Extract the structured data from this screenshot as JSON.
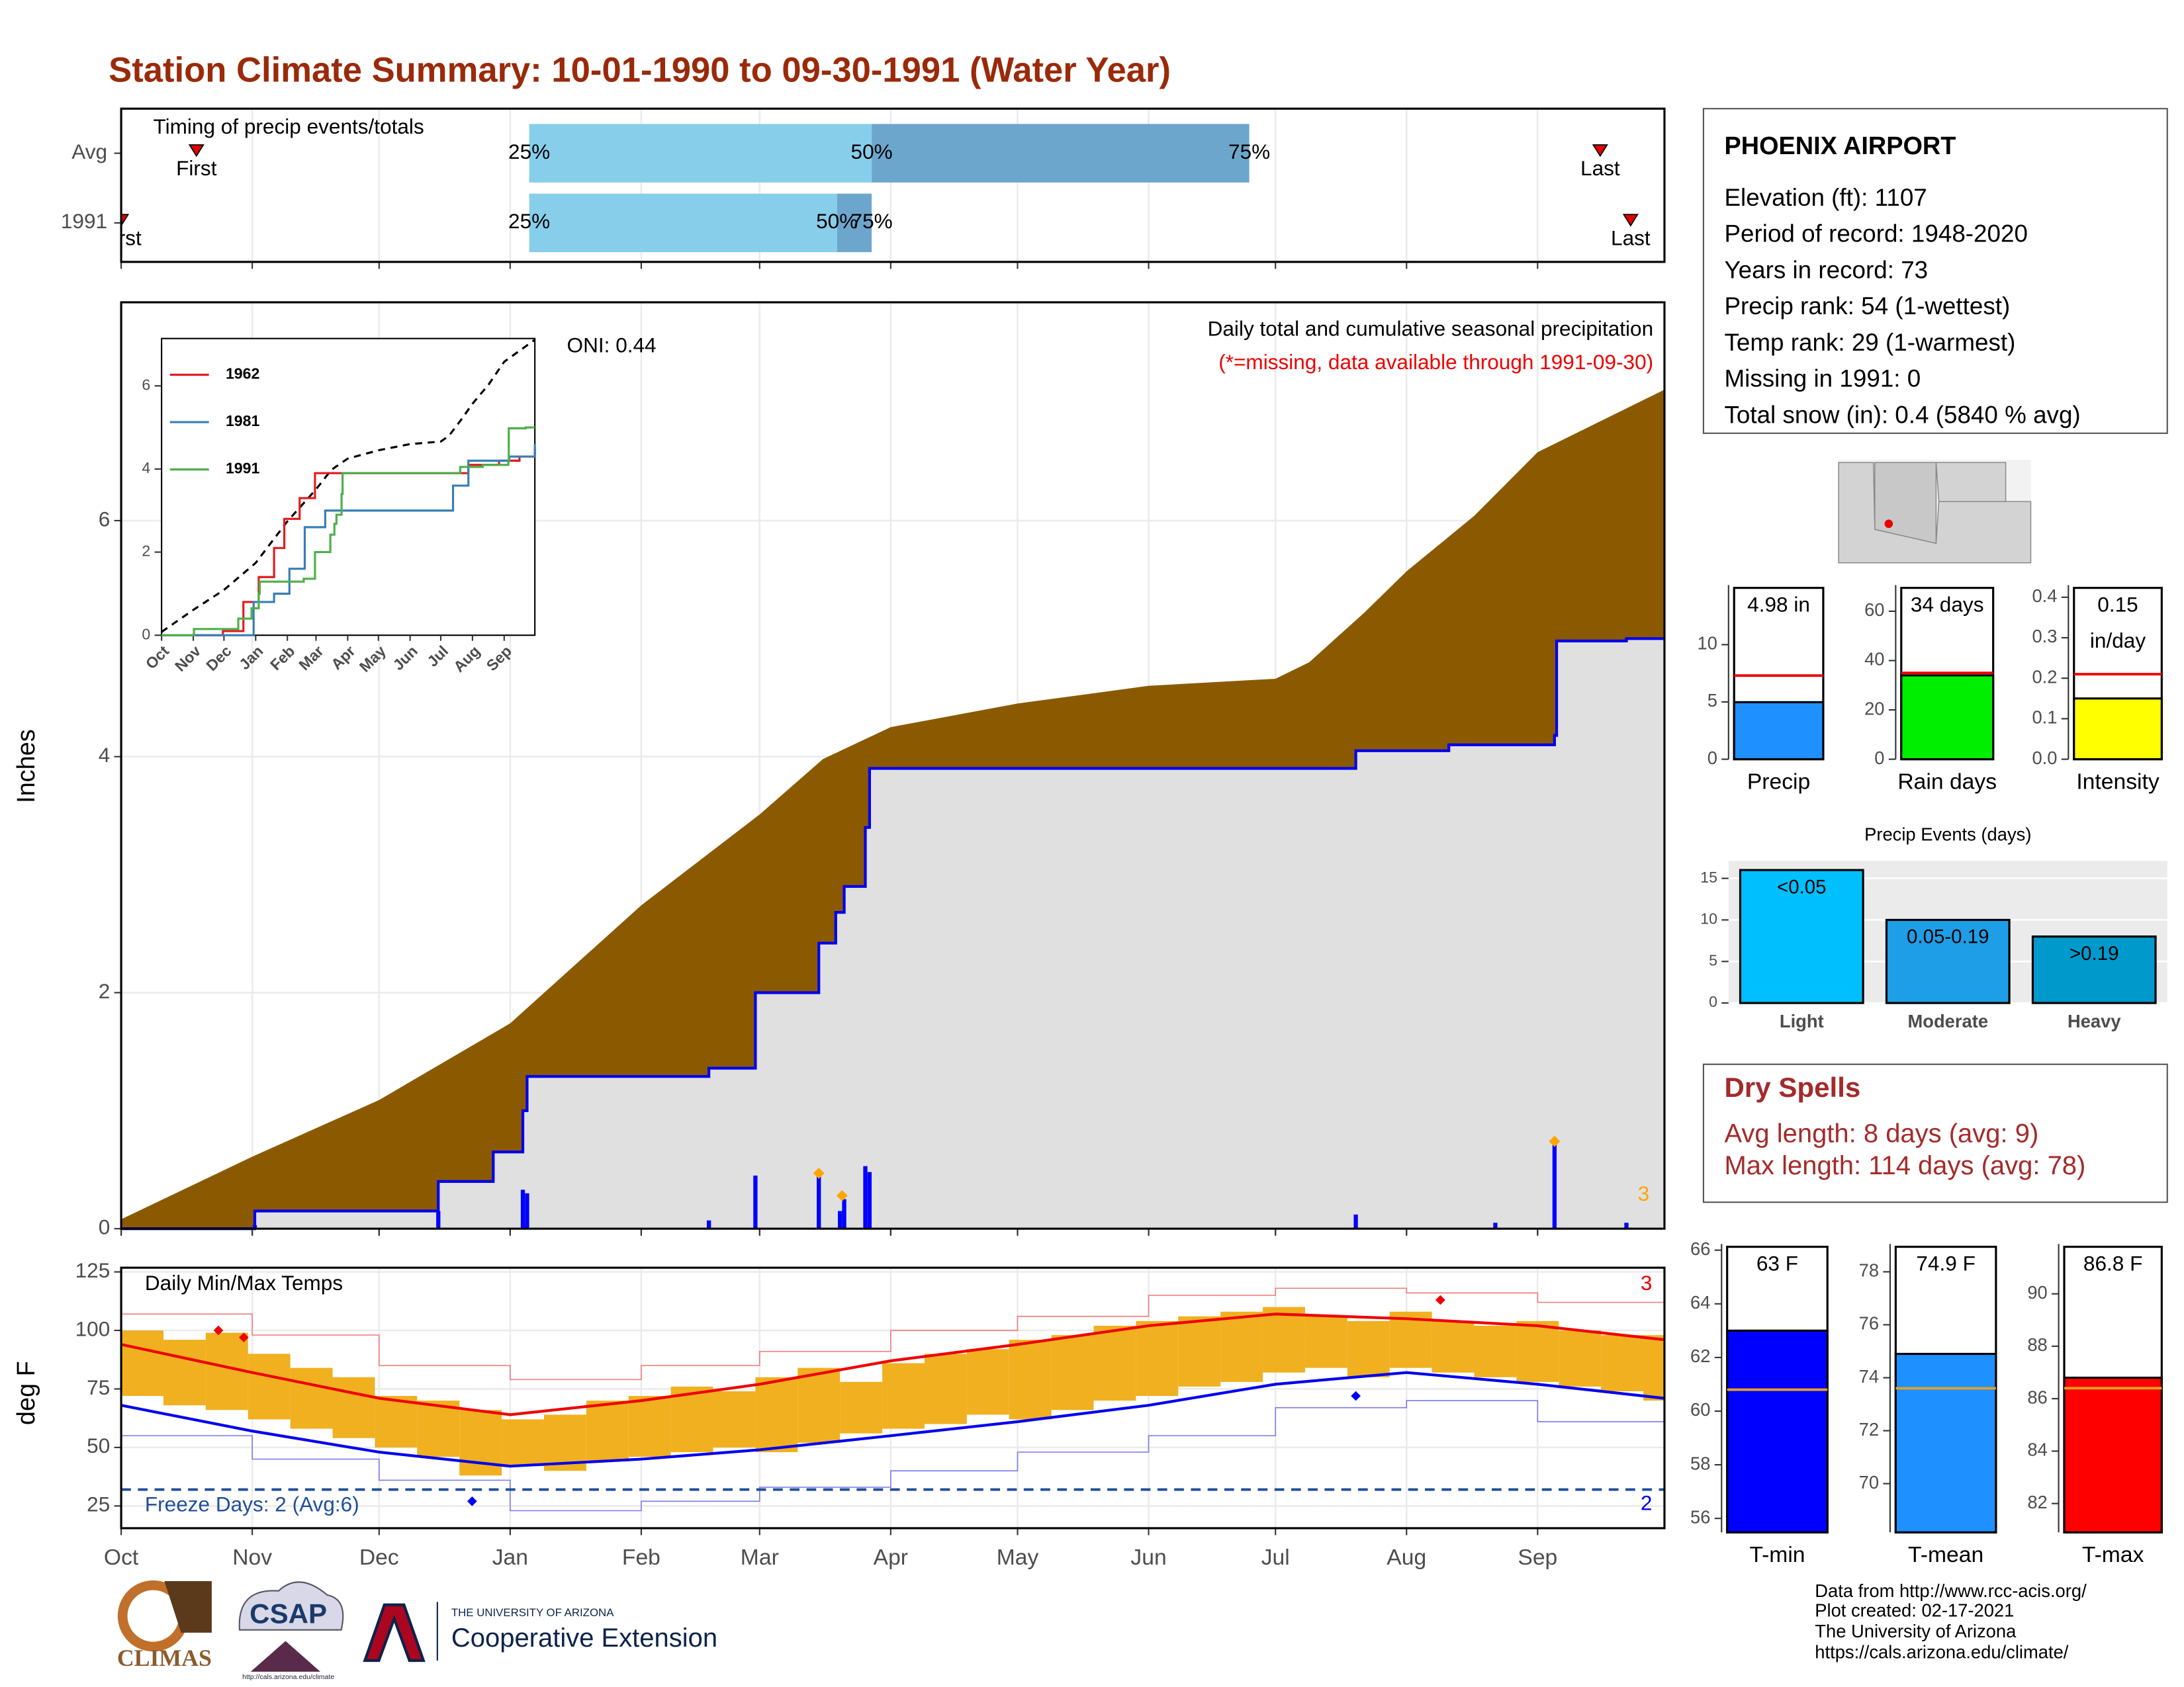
{
  "title": "Station Climate Summary: 10-01-1990 to 09-30-1991 (Water Year)",
  "station": {
    "name": "PHOENIX AIRPORT",
    "lines": [
      "Elevation (ft): 1107",
      "Period of record: 1948-2020",
      "Years in record: 73",
      "Precip rank: 54 (1-wettest)",
      "Temp rank: 29 (1-warmest)",
      "Missing in 1991: 0",
      "Total snow (in): 0.4 (5840 % avg)"
    ]
  },
  "dry_spells": {
    "title": "Dry Spells",
    "lines": [
      "Avg length: 8 days (avg: 9)",
      "Max length: 114 days (avg: 78)"
    ]
  },
  "footer": {
    "lines": [
      "Data from http://www.rcc-acis.org/",
      "Plot created: 02-17-2021",
      "The University of Arizona",
      "https://cals.arizona.edu/climate/"
    ]
  },
  "logos": {
    "climas": "CLIMAS",
    "csap": "CSAP",
    "csap_url": "http://cals.arizona.edu/climate",
    "university": "THE UNIVERSITY OF ARIZONA",
    "extension": "Cooperative Extension"
  },
  "chart_data": [
    {
      "type": "timing",
      "title": "Timing of precip events/totals",
      "xlim": [
        0,
        365
      ],
      "categories": [
        "Avg",
        "1991"
      ],
      "p25": [
        96.5,
        96.5
      ],
      "p50": [
        177.5,
        169.3
      ],
      "p75": [
        266.8,
        177.5
      ],
      "first": [
        17.8,
        0
      ],
      "last": [
        349.8,
        357
      ],
      "labels": {
        "p25": "25%",
        "p50": "50%",
        "p75": "75%",
        "first": "First",
        "last": "Last"
      },
      "colors": [
        "#87ceeb",
        "#6ca6cd"
      ],
      "marker_color": "#e00000"
    },
    {
      "type": "cumulative",
      "y_label": "Inches",
      "xlim": [
        0,
        365
      ],
      "ylim": [
        0,
        7.85
      ],
      "yticks": [
        0,
        2,
        4,
        6
      ],
      "oni": "ONI: 0.44",
      "subtitle": "Daily total and cumulative seasonal precipitation",
      "note": "(*=missing, data available through 1991-09-30)",
      "series": [
        {
          "color": "#8b5a00",
          "x": [
            0,
            31,
            61,
            92,
            123,
            151,
            166,
            182,
            212,
            243,
            273,
            281,
            294,
            304,
            320,
            335,
            365
          ],
          "values": [
            0.08,
            0.61,
            1.09,
            1.74,
            2.74,
            3.51,
            3.98,
            4.25,
            4.45,
            4.6,
            4.66,
            4.8,
            5.22,
            5.57,
            6.04,
            6.58,
            7.11
          ]
        },
        {
          "color": "#0000ee",
          "fill": "#e0e0e0",
          "x": [
            0,
            31.6,
            75,
            88,
            95,
            96,
            139,
            150,
            165,
            169,
            171,
            176,
            177,
            292,
            314,
            339,
            339.5,
            356,
            365
          ],
          "values": [
            0,
            0.15,
            0.4,
            0.65,
            1.0,
            1.29,
            1.36,
            2.0,
            2.42,
            2.68,
            2.9,
            3.4,
            3.9,
            4.05,
            4.1,
            4.18,
            4.98,
            5.0,
            5.0
          ]
        }
      ],
      "daily": {
        "color": "#0000ff",
        "x": [
          31.6,
          75,
          95,
          96,
          139,
          150,
          165,
          170,
          171,
          176,
          177,
          292,
          325,
          339,
          356
        ],
        "values": [
          0.03,
          0.15,
          0.33,
          0.3,
          0.07,
          0.45,
          0.45,
          0.15,
          0.25,
          0.53,
          0.48,
          0.12,
          0.05,
          0.72,
          0.05
        ]
      },
      "records": {
        "color": "#ffa500",
        "x": [
          165,
          170.5,
          339
        ],
        "values": [
          0.47,
          0.28,
          0.74
        ]
      },
      "record_count": 3
    },
    {
      "type": "line",
      "xlim": [
        0,
        365
      ],
      "ylim": [
        0,
        7.14
      ],
      "yticks": [
        0,
        2,
        4,
        6
      ],
      "series": [
        {
          "name": "1962",
          "color": "#e41a1c",
          "x": [
            0,
            60,
            80,
            95,
            110,
            120,
            135,
            150,
            182,
            280,
            300,
            330,
            350,
            365
          ],
          "values": [
            0,
            0.1,
            0.8,
            1.4,
            2.1,
            2.8,
            3.3,
            3.9,
            3.9,
            3.9,
            4.1,
            4.2,
            4.3,
            4.5
          ]
        },
        {
          "name": "1981",
          "color": "#377eb8",
          "x": [
            0,
            90,
            110,
            125,
            140,
            160,
            185,
            280,
            285,
            300,
            340,
            365
          ],
          "values": [
            0,
            0.8,
            1.0,
            1.6,
            2.6,
            3.0,
            3.0,
            3.0,
            3.6,
            4.2,
            4.3,
            4.6
          ]
        },
        {
          "name": "1991",
          "color": "#4daf4a",
          "x": [
            0,
            31.6,
            75,
            88,
            95,
            96,
            139,
            150,
            165,
            169,
            171,
            176,
            177,
            292,
            314,
            339,
            339.5,
            356,
            365
          ],
          "values": [
            0,
            0.15,
            0.4,
            0.65,
            1.0,
            1.29,
            1.36,
            2.0,
            2.42,
            2.68,
            2.9,
            3.4,
            3.9,
            4.05,
            4.1,
            4.18,
            4.98,
            5.0,
            5.0
          ]
        }
      ]
    },
    {
      "type": "range",
      "title": "Daily Min/Max Temps",
      "y_label": "deg F",
      "xlim": [
        0,
        365
      ],
      "ylim": [
        15.5,
        126.8
      ],
      "yticks": [
        25,
        50,
        75,
        100,
        125
      ],
      "xticks": [
        {
          "value": 0,
          "label": "Oct"
        },
        {
          "value": 31,
          "label": "Nov"
        },
        {
          "value": 61,
          "label": "Dec"
        },
        {
          "value": 92,
          "label": "Jan"
        },
        {
          "value": 123,
          "label": "Feb"
        },
        {
          "value": 151,
          "label": "Mar"
        },
        {
          "value": 182,
          "label": "Apr"
        },
        {
          "value": 212,
          "label": "May"
        },
        {
          "value": 243,
          "label": "Jun"
        },
        {
          "value": 273,
          "label": "Jul"
        },
        {
          "value": 304,
          "label": "Aug"
        },
        {
          "value": 335,
          "label": "Sep"
        }
      ],
      "daily": {
        "color": "#f0b020",
        "x": [
          0,
          10,
          20,
          30,
          40,
          50,
          60,
          70,
          80,
          90,
          100,
          110,
          120,
          130,
          140,
          150,
          160,
          170,
          180,
          190,
          200,
          210,
          220,
          230,
          240,
          250,
          260,
          270,
          280,
          290,
          300,
          310,
          320,
          330,
          340,
          350,
          360
        ],
        "high": [
          100,
          96,
          99,
          90,
          84,
          80,
          72,
          70,
          66,
          62,
          64,
          70,
          72,
          76,
          74,
          80,
          84,
          78,
          86,
          90,
          92,
          96,
          98,
          102,
          104,
          106,
          108,
          110,
          106,
          104,
          108,
          104,
          102,
          104,
          100,
          98,
          98
        ],
        "low": [
          72,
          68,
          66,
          62,
          58,
          54,
          50,
          46,
          38,
          42,
          40,
          44,
          46,
          48,
          50,
          48,
          52,
          56,
          58,
          60,
          64,
          62,
          66,
          70,
          72,
          76,
          78,
          82,
          84,
          80,
          84,
          82,
          80,
          78,
          76,
          74,
          70
        ]
      },
      "normals_x": [
        0,
        31,
        61,
        92,
        123,
        151,
        182,
        212,
        243,
        273,
        304,
        335,
        365
      ],
      "avg_max": {
        "color": "#ee0000",
        "values": [
          94,
          82,
          71,
          64,
          70,
          77,
          87,
          94,
          102,
          107,
          105,
          102,
          96
        ]
      },
      "avg_min": {
        "color": "#0000ee",
        "values": [
          68,
          57,
          48,
          42,
          45,
          49,
          55,
          61,
          68,
          77,
          82,
          77,
          71
        ]
      },
      "record_max": {
        "color": "#f08080",
        "values": [
          107,
          98,
          85,
          79,
          85,
          91,
          100,
          106,
          115,
          118,
          116,
          112,
          107
        ]
      },
      "record_min": {
        "color": "#8080ee",
        "values": [
          55,
          45,
          36,
          23,
          27,
          33,
          40,
          48,
          55,
          67,
          70,
          61,
          60
        ]
      },
      "max_records": {
        "color": "#ee0000",
        "x": [
          23,
          29,
          312
        ],
        "values": [
          100,
          97,
          113
        ],
        "count": 3
      },
      "min_records": {
        "color": "#0000ee",
        "x": [
          83,
          292
        ],
        "values": [
          27,
          72
        ],
        "count": 2
      },
      "freeze": 32,
      "freeze_color": "#1f4e9a",
      "freeze_label": "Freeze Days: 2 (Avg:6)"
    },
    {
      "type": "single_bar",
      "category": "Precip",
      "value": 4.98,
      "value_label": "4.98 in",
      "average": 7.3,
      "average_color": "#ee0000",
      "color": "#1e90ff",
      "ylim": [
        0,
        15.2
      ],
      "yticks": [
        0,
        5,
        10
      ]
    },
    {
      "type": "single_bar",
      "category": "Rain days",
      "value": 34,
      "value_label": "34 days",
      "average": 35,
      "average_color": "#ee0000",
      "color": "#00ee00",
      "ylim": [
        0,
        70.6
      ],
      "yticks": [
        0,
        20,
        40,
        60
      ]
    },
    {
      "type": "single_bar",
      "category": "Intensity",
      "value": 0.15,
      "value_label": "0.15 in/day",
      "average": 0.21,
      "average_color": "#ee0000",
      "color": "#ffff00",
      "ylim": [
        0,
        0.43
      ],
      "yticks": [
        0.0,
        0.1,
        0.2,
        0.3,
        0.4
      ],
      "ytick_labels": [
        "0.0",
        "0.1",
        "0.2",
        "0.3",
        "0.4"
      ]
    },
    {
      "type": "bar",
      "title": "Precip Events (days)",
      "categories": [
        "Light",
        "Moderate",
        "Heavy"
      ],
      "values": [
        16,
        10,
        8
      ],
      "value_labels": [
        "<0.05",
        "0.05-0.19",
        ">0.19"
      ],
      "colors": [
        "#00bfff",
        "#1e9ee6",
        "#0099cc"
      ],
      "ylim": [
        0,
        17.1
      ],
      "yticks": [
        0,
        5,
        10,
        15
      ]
    },
    {
      "type": "single_bar",
      "category": "T-min",
      "value": 63,
      "value_label": "63 F",
      "average": 60.8,
      "average_color": "#e8a020",
      "color": "#0000ff",
      "ylim": [
        55.48,
        66.23
      ],
      "yticks": [
        56,
        58,
        60,
        62,
        64,
        66
      ]
    },
    {
      "type": "single_bar",
      "category": "T-mean",
      "value": 74.9,
      "value_label": "74.9 F",
      "average": 73.6,
      "average_color": "#e8a020",
      "color": "#1e90ff",
      "ylim": [
        68.16,
        79.05
      ],
      "yticks": [
        70,
        72,
        74,
        76,
        78
      ]
    },
    {
      "type": "single_bar",
      "category": "T-max",
      "value": 86.8,
      "value_label": "86.8 F",
      "average": 86.4,
      "average_color": "#e8a020",
      "color": "#ff0000",
      "ylim": [
        80.9,
        91.9
      ],
      "yticks": [
        82,
        84,
        86,
        88,
        90
      ]
    }
  ]
}
